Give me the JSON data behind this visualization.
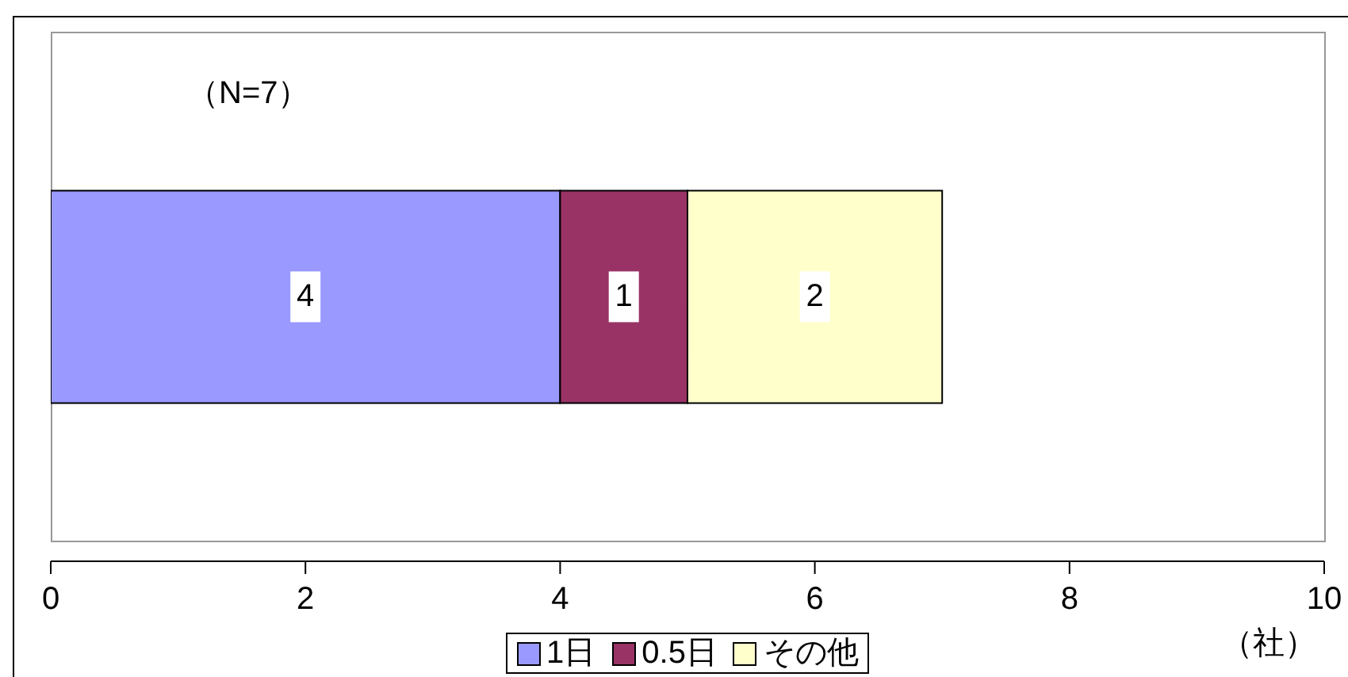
{
  "chart_data": {
    "type": "bar",
    "orientation": "horizontal",
    "stacked": true,
    "categories": [
      null
    ],
    "series": [
      {
        "name": "1日",
        "color": "#9999ff",
        "values": [
          4
        ]
      },
      {
        "name": "0.5日",
        "color": "#993366",
        "values": [
          1
        ]
      },
      {
        "name": "その他",
        "color": "#ffffcc",
        "values": [
          2
        ]
      }
    ],
    "xlim": [
      0,
      10
    ],
    "xticks": [
      0,
      2,
      4,
      6,
      8,
      10
    ],
    "xlabel": "（社）",
    "annotations": [
      "（N=7）"
    ],
    "data_labels": true,
    "legend": "bottom",
    "grid": false
  }
}
